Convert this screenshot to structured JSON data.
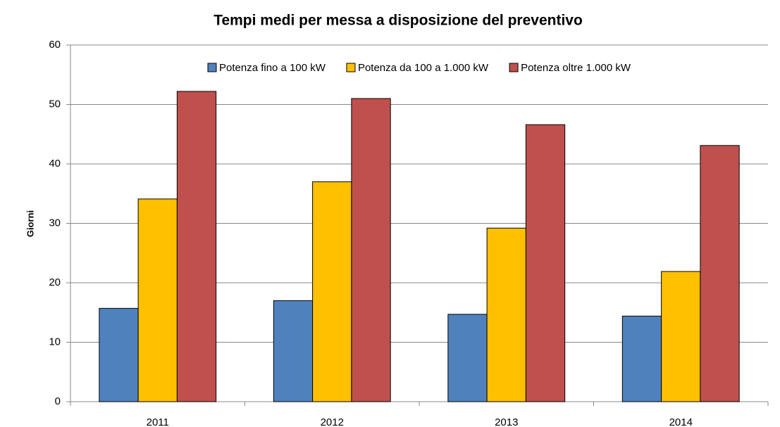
{
  "chart_data": {
    "type": "bar",
    "title": "Tempi medi per messa a disposizione del preventivo",
    "y_label": "Giorni",
    "categories": [
      "2011",
      "2012",
      "2013",
      "2014"
    ],
    "series": [
      {
        "name": "Potenza fino a 100 kW",
        "color": "#4f81bd",
        "values": [
          15.7,
          17.0,
          14.7,
          14.4
        ]
      },
      {
        "name": "Potenza da 100 a 1.000 kW",
        "color": "#ffc000",
        "values": [
          34.1,
          37.0,
          29.2,
          21.9
        ]
      },
      {
        "name": "Potenza oltre 1.000 kW",
        "color": "#c0504d",
        "values": [
          52.2,
          51.0,
          46.6,
          43.1
        ]
      }
    ],
    "ylim": [
      0,
      60
    ],
    "yticks": [
      0,
      10,
      20,
      30,
      40,
      50,
      60
    ],
    "grid": true,
    "legend": "top"
  }
}
